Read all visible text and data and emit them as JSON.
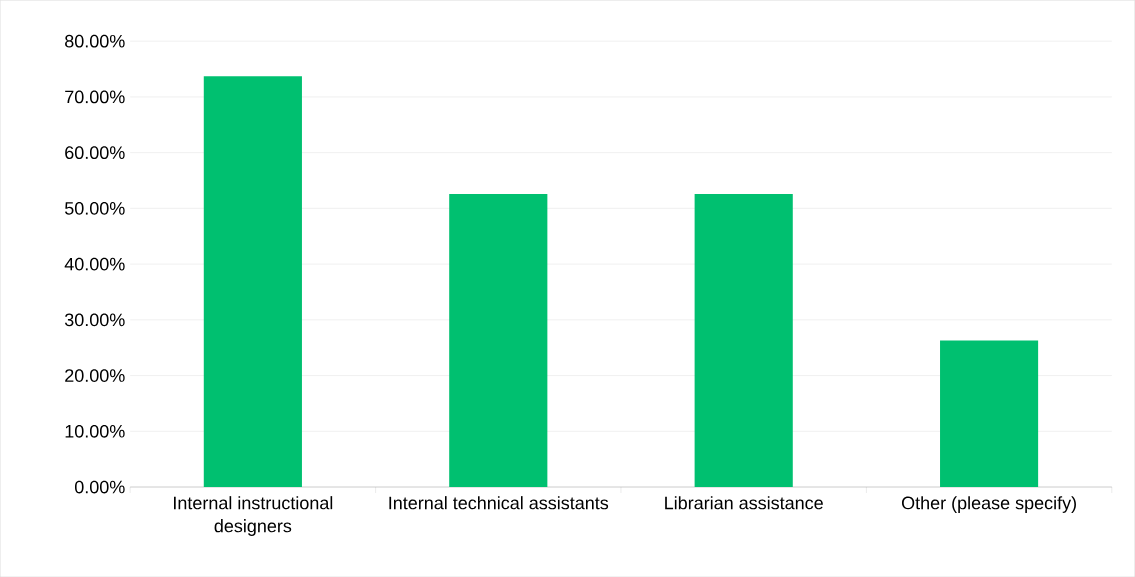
{
  "chart_data": {
    "type": "bar",
    "categories": [
      "Internal instructional designers",
      "Internal technical assistants",
      "Librarian assistance",
      "Other (please specify)"
    ],
    "values": [
      73.7,
      52.6,
      52.6,
      26.3
    ],
    "color": "#00c070",
    "ylim": [
      0,
      80
    ],
    "yticks": [
      {
        "value": 0,
        "label": "0.00%"
      },
      {
        "value": 10,
        "label": "10.00%"
      },
      {
        "value": 20,
        "label": "20.00%"
      },
      {
        "value": 30,
        "label": "30.00%"
      },
      {
        "value": 40,
        "label": "40.00%"
      },
      {
        "value": 50,
        "label": "50.00%"
      },
      {
        "value": 60,
        "label": "60.00%"
      },
      {
        "value": 70,
        "label": "70.00%"
      },
      {
        "value": 80,
        "label": "80.00%"
      }
    ],
    "grid": "y"
  }
}
